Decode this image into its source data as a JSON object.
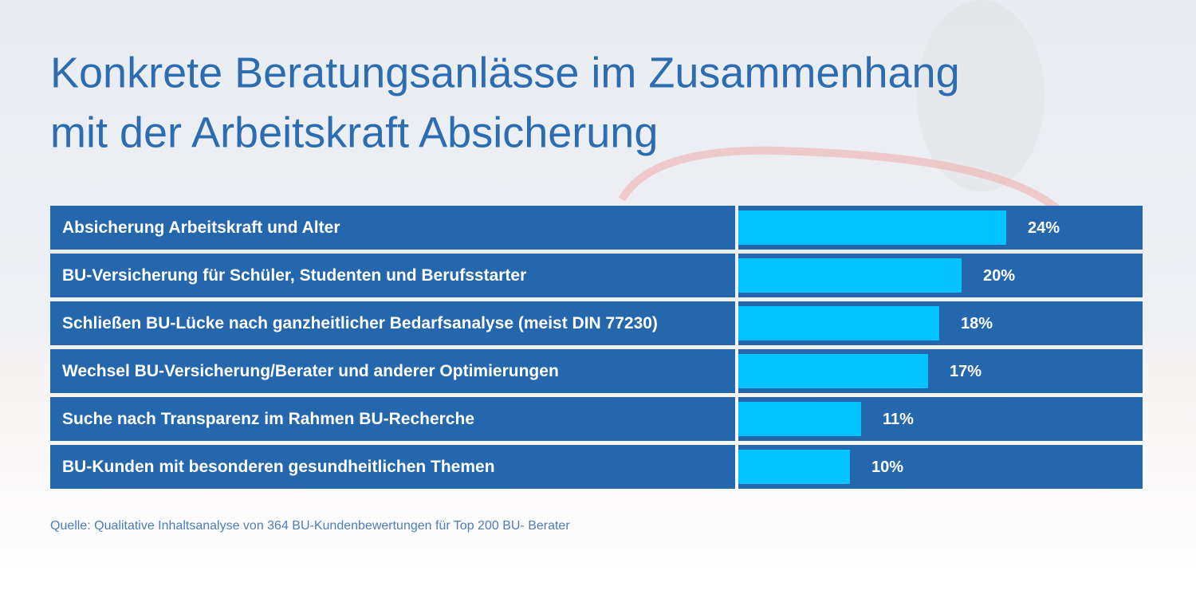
{
  "chart_data": {
    "type": "bar",
    "orientation": "horizontal",
    "title": [
      "Konkrete Beratungsanlässe im Zusammenhang",
      "mit der Arbeitskraft Absicherung"
    ],
    "categories": [
      "Absicherung Arbeitskraft und Alter",
      "BU-Versicherung für Schüler, Studenten und Berufsstarter",
      "Schließen BU-Lücke nach ganzheitlicher Bedarfsanalyse (meist DIN 77230)",
      "Wechsel BU-Versicherung/Berater und anderer Optimierungen",
      "Suche nach Transparenz im Rahmen BU-Recherche",
      "BU-Kunden mit besonderen gesundheitlichen Themen"
    ],
    "values": [
      24,
      20,
      18,
      17,
      11,
      10
    ],
    "value_labels": [
      "24%",
      "20%",
      "18%",
      "17%",
      "11%",
      "10%"
    ],
    "color": "#00c3ff",
    "row_color": "#2467ad",
    "source": "Quelle: Qualitative Inhaltsanalyse von 364 BU-Kundenbewertungen für Top 200 BU- Berater"
  }
}
